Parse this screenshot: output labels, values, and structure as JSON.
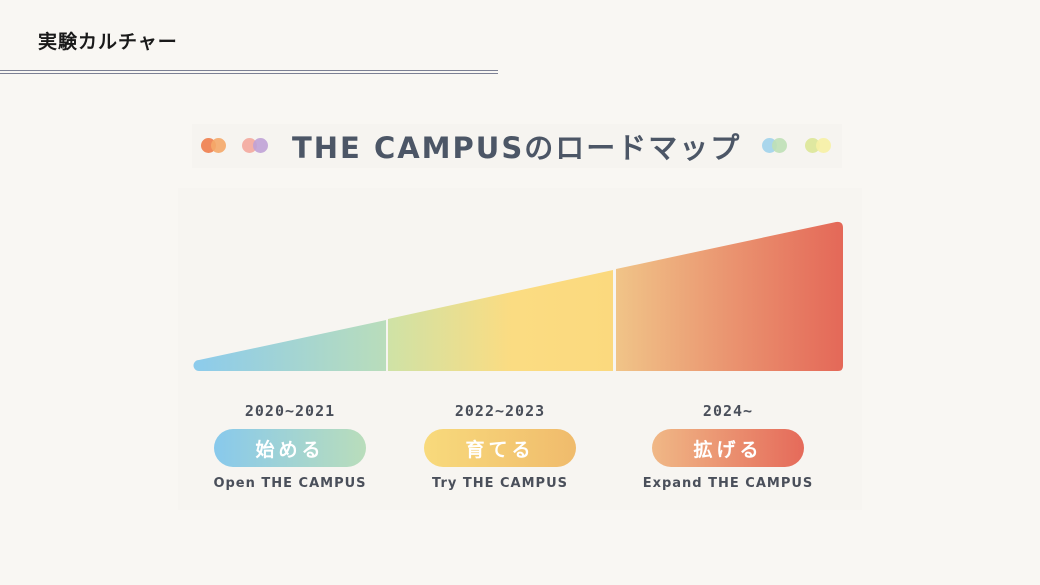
{
  "header": {
    "title": "実験カルチャー"
  },
  "roadmap": {
    "title": "THE CAMPUSのロードマップ",
    "phases": [
      {
        "years": "2020~2021",
        "label": "始める",
        "english": "Open THE CAMPUS"
      },
      {
        "years": "2022~2023",
        "label": "育てる",
        "english": "Try THE CAMPUS"
      },
      {
        "years": "2024~",
        "label": "拡げる",
        "english": "Expand THE CAMPUS"
      }
    ]
  },
  "colors": {
    "blue": "#8ccbec",
    "mint": "#b9ddbb",
    "yellow": "#fbdc82",
    "peach": "#f0b886",
    "red": "#e56a5a"
  }
}
